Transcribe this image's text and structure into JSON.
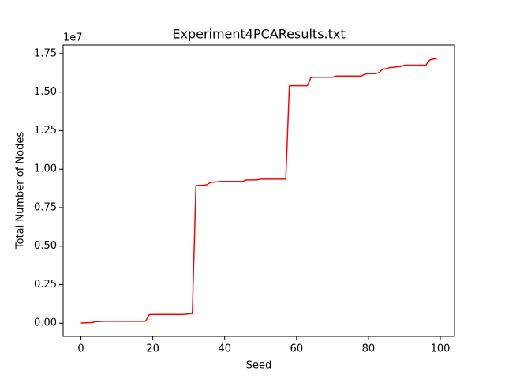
{
  "chart_data": {
    "type": "line",
    "title": "Experiment4PCAResults.txt",
    "xlabel": "Seed",
    "ylabel": "Total Number of Nodes",
    "y_offset_label": "1e7",
    "x": [
      0,
      1,
      2,
      3,
      4,
      5,
      6,
      7,
      8,
      9,
      10,
      11,
      12,
      13,
      14,
      15,
      16,
      17,
      18,
      19,
      20,
      21,
      22,
      23,
      24,
      25,
      26,
      27,
      28,
      29,
      30,
      31,
      32,
      33,
      34,
      35,
      36,
      37,
      38,
      39,
      40,
      41,
      42,
      43,
      44,
      45,
      46,
      47,
      48,
      49,
      50,
      51,
      52,
      53,
      54,
      55,
      56,
      57,
      58,
      59,
      60,
      61,
      62,
      63,
      64,
      65,
      66,
      67,
      68,
      69,
      70,
      71,
      72,
      73,
      74,
      75,
      76,
      77,
      78,
      79,
      80,
      81,
      82,
      83,
      84,
      85,
      86,
      87,
      88,
      89,
      90,
      91,
      92,
      93,
      94,
      95,
      96,
      97,
      98,
      99
    ],
    "series": [
      {
        "color": "#ff0000",
        "values": [
          0.002,
          0.002,
          0.003,
          0.003,
          0.01,
          0.01,
          0.012,
          0.012,
          0.012,
          0.012,
          0.012,
          0.012,
          0.012,
          0.012,
          0.012,
          0.012,
          0.012,
          0.012,
          0.013,
          0.055,
          0.056,
          0.056,
          0.056,
          0.056,
          0.056,
          0.056,
          0.056,
          0.056,
          0.056,
          0.057,
          0.06,
          0.062,
          0.893,
          0.895,
          0.896,
          0.898,
          0.913,
          0.916,
          0.918,
          0.92,
          0.92,
          0.92,
          0.92,
          0.92,
          0.92,
          0.92,
          0.93,
          0.93,
          0.93,
          0.93,
          0.935,
          0.935,
          0.935,
          0.935,
          0.935,
          0.935,
          0.935,
          0.935,
          1.54,
          1.541,
          1.541,
          1.541,
          1.541,
          1.541,
          1.595,
          1.597,
          1.597,
          1.597,
          1.597,
          1.597,
          1.597,
          1.605,
          1.605,
          1.605,
          1.605,
          1.605,
          1.605,
          1.605,
          1.605,
          1.617,
          1.62,
          1.62,
          1.62,
          1.628,
          1.65,
          1.652,
          1.66,
          1.661,
          1.665,
          1.666,
          1.675,
          1.675,
          1.675,
          1.675,
          1.675,
          1.675,
          1.675,
          1.708,
          1.715,
          1.716
        ]
      }
    ],
    "xlim": [
      -4.95,
      103.95
    ],
    "ylim": [
      -0.086,
      1.806
    ],
    "xticks": [
      0,
      20,
      40,
      60,
      80,
      100
    ],
    "yticks": [
      {
        "value": 0,
        "label": "0.00"
      },
      0.25,
      {
        "value": 0.5,
        "label": "0.50"
      },
      0.75,
      {
        "value": 1,
        "label": "1.00"
      },
      1.25,
      {
        "value": 1.5,
        "label": "1.50"
      },
      1.75
    ],
    "grid": false
  }
}
